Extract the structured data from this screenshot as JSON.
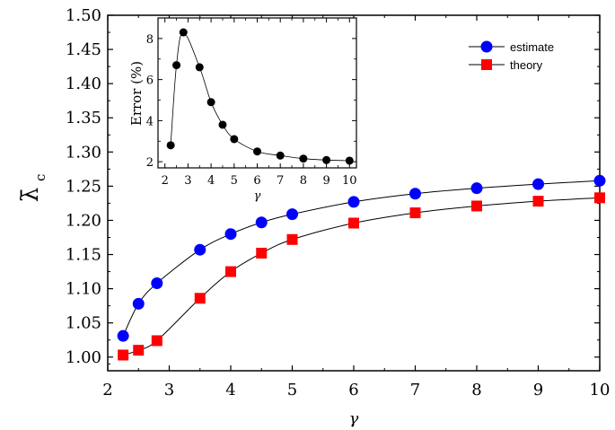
{
  "chart_data": [
    {
      "type": "line",
      "xlabel": "γ",
      "ylabel": "λ̄",
      "ylabel_sub": "c",
      "xlim": [
        2,
        10
      ],
      "ylim": [
        0.98,
        1.5
      ],
      "xticks": [
        2,
        3,
        4,
        5,
        6,
        7,
        8,
        9,
        10
      ],
      "xtick_labels": [
        "2",
        "3",
        "4",
        "5",
        "6",
        "7",
        "8",
        "9",
        "10"
      ],
      "yticks": [
        1.0,
        1.05,
        1.1,
        1.15,
        1.2,
        1.25,
        1.3,
        1.35,
        1.4,
        1.45,
        1.5
      ],
      "ytick_labels": [
        "1.00",
        "1.05",
        "1.10",
        "1.15",
        "1.20",
        "1.25",
        "1.30",
        "1.35",
        "1.40",
        "1.45",
        "1.50"
      ],
      "legend": "top-right",
      "series": [
        {
          "name": "estimate",
          "marker": "circle",
          "color": "#0000ff",
          "x": [
            2.25,
            2.5,
            2.8,
            3.5,
            4.0,
            4.5,
            5.0,
            6.0,
            7.0,
            8.0,
            9.0,
            10.0
          ],
          "y": [
            1.031,
            1.078,
            1.108,
            1.157,
            1.18,
            1.197,
            1.209,
            1.227,
            1.239,
            1.247,
            1.253,
            1.258
          ]
        },
        {
          "name": "theory",
          "marker": "square",
          "color": "#ff0000",
          "x": [
            2.25,
            2.5,
            2.8,
            3.5,
            4.0,
            4.5,
            5.0,
            6.0,
            7.0,
            8.0,
            9.0,
            10.0
          ],
          "y": [
            1.003,
            1.01,
            1.024,
            1.086,
            1.125,
            1.152,
            1.172,
            1.196,
            1.211,
            1.221,
            1.228,
            1.233
          ]
        }
      ]
    },
    {
      "type": "line",
      "xlabel": "γ",
      "ylabel": "Error (%)",
      "xlim": [
        1.7,
        10.3
      ],
      "ylim": [
        1.7,
        9.0
      ],
      "xticks": [
        2,
        3,
        4,
        5,
        6,
        7,
        8,
        9,
        10
      ],
      "xtick_labels": [
        "2",
        "3",
        "4",
        "5",
        "6",
        "7",
        "8",
        "9",
        "10"
      ],
      "yticks": [
        2,
        4,
        6,
        8
      ],
      "ytick_labels": [
        "2",
        "4",
        "6",
        "8"
      ],
      "series": [
        {
          "marker": "circle",
          "color": "#000000",
          "x": [
            2.25,
            2.5,
            2.8,
            3.5,
            4.0,
            4.5,
            5.0,
            6.0,
            7.0,
            8.0,
            9.0,
            10.0
          ],
          "y": [
            2.8,
            6.7,
            8.3,
            6.6,
            4.9,
            3.8,
            3.1,
            2.5,
            2.3,
            2.15,
            2.08,
            2.05
          ]
        }
      ]
    }
  ]
}
